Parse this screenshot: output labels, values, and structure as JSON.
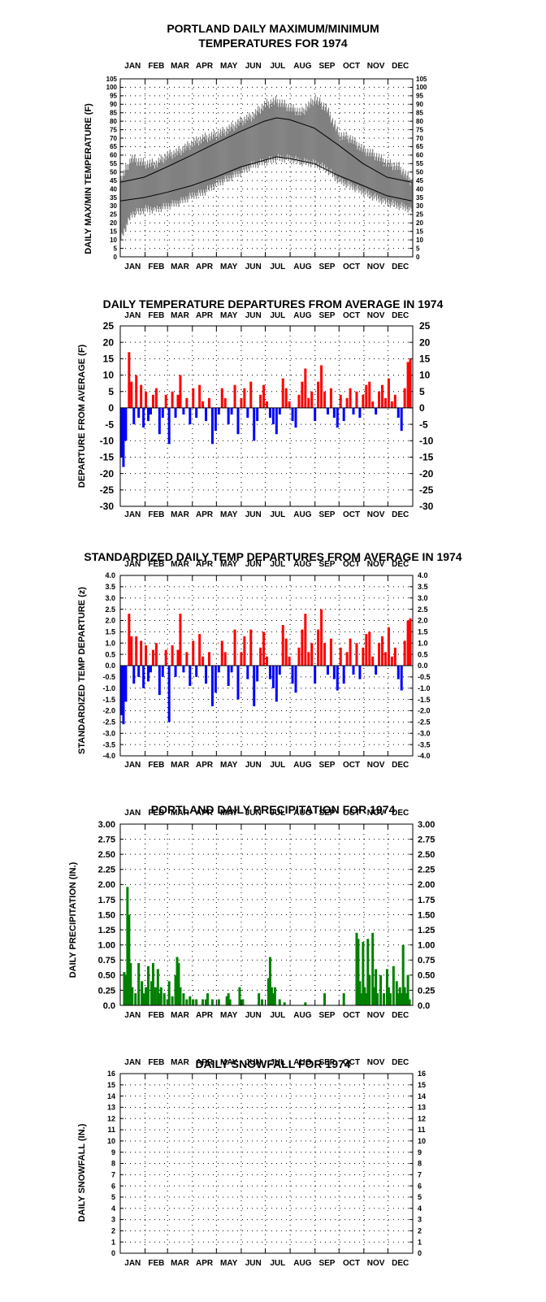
{
  "chart_data": [
    {
      "type": "line",
      "title": "PORTLAND DAILY MAXIMUM/MINIMUM TEMPERATURES FOR 1974",
      "title_lines": [
        "PORTLAND DAILY MAXIMUM/MINIMUM",
        "TEMPERATURES FOR 1974"
      ],
      "ylabel": "DAILY MAX/MIN TEMPERATURE (F)",
      "months": [
        "JAN",
        "FEB",
        "MAR",
        "APR",
        "MAY",
        "JUN",
        "JUL",
        "AUG",
        "SEP",
        "OCT",
        "NOV",
        "DEC"
      ],
      "ylim": [
        0,
        105
      ],
      "yticks": [
        "0",
        "5",
        "10",
        "15",
        "20",
        "25",
        "30",
        "35",
        "40",
        "45",
        "50",
        "55",
        "60",
        "65",
        "70",
        "75",
        "80",
        "85",
        "90",
        "95",
        "100",
        "105"
      ],
      "grid": true,
      "series": [
        {
          "role": "daily-range-band",
          "color": "#808080",
          "x": [
            1,
            15,
            32,
            46,
            60,
            74,
            91,
            105,
            121,
            135,
            152,
            166,
            182,
            196,
            213,
            227,
            244,
            258,
            274,
            288,
            305,
            319,
            335,
            349,
            365
          ],
          "high": [
            45,
            58,
            55,
            55,
            60,
            62,
            67,
            70,
            72,
            75,
            80,
            83,
            90,
            92,
            88,
            85,
            93,
            88,
            72,
            70,
            63,
            60,
            55,
            53,
            44
          ],
          "low": [
            10,
            25,
            28,
            28,
            30,
            32,
            36,
            38,
            43,
            46,
            50,
            54,
            56,
            58,
            58,
            56,
            55,
            52,
            45,
            42,
            38,
            35,
            32,
            30,
            28
          ]
        },
        {
          "role": "normal-high",
          "color": "#000000",
          "x": [
            1,
            31,
            59,
            90,
            120,
            151,
            181,
            196,
            212,
            243,
            273,
            304,
            334,
            365
          ],
          "values": [
            44,
            47,
            53,
            60,
            67,
            74,
            80,
            82,
            81,
            76,
            66,
            55,
            47,
            44
          ]
        },
        {
          "role": "normal-low",
          "color": "#000000",
          "x": [
            1,
            31,
            59,
            90,
            120,
            151,
            181,
            196,
            212,
            243,
            273,
            304,
            334,
            365
          ],
          "values": [
            33,
            35,
            38,
            42,
            47,
            53,
            57,
            59,
            58,
            55,
            48,
            42,
            36,
            33
          ]
        }
      ]
    },
    {
      "type": "bar",
      "title": "DAILY TEMPERATURE DEPARTURES FROM AVERAGE IN 1974",
      "ylabel": "DEPARTURE FROM AVERAGE (F)",
      "months": [
        "JAN",
        "FEB",
        "MAR",
        "APR",
        "MAY",
        "JUN",
        "JUL",
        "AUG",
        "SEP",
        "OCT",
        "NOV",
        "DEC"
      ],
      "ylim": [
        -30,
        25
      ],
      "yticks": [
        "-30",
        "-25",
        "-20",
        "-15",
        "-10",
        "-5",
        "0",
        "5",
        "10",
        "15",
        "20",
        "25"
      ],
      "grid": true,
      "colors": {
        "positive": "#ff0000",
        "negative": "#0000ff"
      },
      "x": [
        2,
        5,
        8,
        12,
        15,
        18,
        21,
        24,
        27,
        30,
        33,
        36,
        39,
        42,
        46,
        50,
        54,
        58,
        62,
        66,
        70,
        73,
        76,
        80,
        84,
        88,
        92,
        96,
        100,
        104,
        108,
        112,
        116,
        120,
        124,
        128,
        132,
        136,
        140,
        144,
        148,
        152,
        156,
        160,
        164,
        168,
        172,
        176,
        180,
        184,
        188,
        192,
        196,
        200,
        204,
        208,
        212,
        216,
        220,
        224,
        228,
        232,
        236,
        240,
        244,
        248,
        252,
        256,
        260,
        264,
        268,
        272,
        276,
        280,
        284,
        288,
        292,
        296,
        300,
        304,
        308,
        312,
        316,
        320,
        324,
        328,
        332,
        336,
        340,
        344,
        348,
        352,
        356,
        360,
        363
      ],
      "values": [
        -15,
        -18,
        -10,
        17,
        8,
        -5,
        10,
        -3,
        7,
        -6,
        5,
        -4,
        -2,
        4,
        6,
        -8,
        -3,
        4,
        -11,
        5,
        -3,
        4,
        10,
        -2,
        3,
        -5,
        6,
        -3,
        7,
        2,
        -4,
        3,
        -11,
        -7,
        -2,
        6,
        3,
        -5,
        -2,
        7,
        -8,
        3,
        6,
        -3,
        8,
        -10,
        -4,
        4,
        7,
        2,
        -3,
        -5,
        -8,
        -2,
        9,
        6,
        2,
        -4,
        -6,
        4,
        8,
        12,
        3,
        5,
        -4,
        8,
        13,
        5,
        -2,
        6,
        -3,
        -6,
        4,
        -4,
        3,
        6,
        -2,
        5,
        -3,
        4,
        7,
        8,
        2,
        -2,
        5,
        7,
        3,
        9,
        2,
        4,
        -3,
        -7,
        6,
        14,
        15
      ]
    },
    {
      "type": "bar",
      "title": "STANDARDIZED DAILY TEMP DEPARTURES FROM AVERAGE IN 1974",
      "ylabel": "STANDARDIZED TEMP DEPARTURE (z)",
      "months": [
        "JAN",
        "FEB",
        "MAR",
        "APR",
        "MAY",
        "JUN",
        "JUL",
        "AUG",
        "SEP",
        "OCT",
        "NOV",
        "DEC"
      ],
      "ylim": [
        -4,
        4
      ],
      "yticks": [
        "-4.0",
        "-3.5",
        "-3.0",
        "-2.5",
        "-2.0",
        "-1.5",
        "-1.0",
        "-0.5",
        "0.0",
        "0.5",
        "1.0",
        "1.5",
        "2.0",
        "2.5",
        "3.0",
        "3.5",
        "4.0"
      ],
      "grid": true,
      "colors": {
        "positive": "#ff0000",
        "negative": "#0000ff"
      },
      "x": [
        2,
        5,
        8,
        12,
        15,
        18,
        21,
        24,
        27,
        30,
        33,
        36,
        39,
        42,
        46,
        50,
        54,
        58,
        62,
        66,
        70,
        73,
        76,
        80,
        84,
        88,
        92,
        96,
        100,
        104,
        108,
        112,
        116,
        120,
        124,
        128,
        132,
        136,
        140,
        144,
        148,
        152,
        156,
        160,
        164,
        168,
        172,
        176,
        180,
        184,
        188,
        192,
        196,
        200,
        204,
        208,
        212,
        216,
        220,
        224,
        228,
        232,
        236,
        240,
        244,
        248,
        252,
        256,
        260,
        264,
        268,
        272,
        276,
        280,
        284,
        288,
        292,
        296,
        300,
        304,
        308,
        312,
        316,
        320,
        324,
        328,
        332,
        336,
        340,
        344,
        348,
        352,
        356,
        360,
        363
      ],
      "values": [
        -2.2,
        -2.6,
        -1.6,
        2.3,
        1.3,
        -0.8,
        1.3,
        -0.5,
        1.1,
        -1.0,
        0.9,
        -0.7,
        -0.3,
        0.7,
        1.0,
        -1.3,
        -0.5,
        0.7,
        -2.5,
        0.9,
        -0.5,
        0.7,
        2.3,
        -0.3,
        0.6,
        -0.9,
        1.1,
        -0.5,
        1.4,
        0.4,
        -0.8,
        0.6,
        -1.8,
        -1.2,
        -0.3,
        1.1,
        0.6,
        -0.9,
        -0.3,
        1.6,
        -1.5,
        0.6,
        1.3,
        -0.6,
        1.6,
        -1.8,
        -0.7,
        0.8,
        1.5,
        0.4,
        -0.6,
        -1.0,
        -1.6,
        -0.4,
        1.8,
        1.2,
        0.4,
        -0.8,
        -1.2,
        0.8,
        1.6,
        2.3,
        0.6,
        1.0,
        -0.8,
        1.6,
        2.5,
        1.0,
        -0.4,
        1.2,
        -0.6,
        -1.1,
        0.8,
        -0.8,
        0.6,
        1.2,
        -0.4,
        1.0,
        -0.6,
        0.8,
        1.4,
        1.5,
        0.4,
        -0.4,
        1.0,
        1.3,
        0.6,
        1.7,
        0.4,
        0.8,
        -0.6,
        -1.1,
        1.1,
        2.0,
        2.1
      ]
    },
    {
      "type": "bar",
      "title": "PORTLAND DAILY PRECIPITATION FOR 1974",
      "ylabel": "DAILY PRECIPITATION (IN.)",
      "months": [
        "JAN",
        "FEB",
        "MAR",
        "APR",
        "MAY",
        "JUN",
        "JUL",
        "AUG",
        "SEP",
        "OCT",
        "NOV",
        "DEC"
      ],
      "ylim": [
        0,
        3
      ],
      "yticks": [
        "0.0",
        "0.25",
        "0.50",
        "0.75",
        "1.00",
        "1.25",
        "1.50",
        "1.75",
        "2.00",
        "2.25",
        "2.50",
        "2.75",
        "3.00"
      ],
      "grid": true,
      "colors": {
        "bar": "#008000"
      },
      "x": [
        6,
        8,
        10,
        12,
        14,
        16,
        20,
        24,
        28,
        30,
        33,
        36,
        40,
        42,
        45,
        48,
        50,
        52,
        56,
        60,
        62,
        66,
        70,
        72,
        74,
        76,
        80,
        84,
        88,
        92,
        96,
        104,
        108,
        110,
        116,
        124,
        134,
        136,
        138,
        150,
        154,
        174,
        178,
        186,
        188,
        190,
        192,
        194,
        200,
        206,
        232,
        256,
        280,
        296,
        298,
        300,
        302,
        304,
        306,
        308,
        310,
        312,
        316,
        318,
        320,
        322,
        326,
        330,
        334,
        336,
        338,
        342,
        346,
        348,
        350,
        352,
        354,
        356,
        358,
        360,
        362
      ],
      "values": [
        0.55,
        0.5,
        1.96,
        1.5,
        0.7,
        0.3,
        0.2,
        0.7,
        0.4,
        0.2,
        0.3,
        0.65,
        0.4,
        0.7,
        0.3,
        0.6,
        0.2,
        0.3,
        0.2,
        0.1,
        0.4,
        0.15,
        0.5,
        0.8,
        0.7,
        0.3,
        0.2,
        0.1,
        0.15,
        0.1,
        0.1,
        0.1,
        0.1,
        0.2,
        0.1,
        0.1,
        0.15,
        0.2,
        0.1,
        0.3,
        0.1,
        0.2,
        0.1,
        0.45,
        0.8,
        0.3,
        0.2,
        0.3,
        0.1,
        0.05,
        0.05,
        0.2,
        0.2,
        1.2,
        1.1,
        0.4,
        0.2,
        1.05,
        0.3,
        0.2,
        1.1,
        0.5,
        1.2,
        0.3,
        0.6,
        0.2,
        0.5,
        0.2,
        0.6,
        0.3,
        0.2,
        0.65,
        0.4,
        0.2,
        0.3,
        0.2,
        1.0,
        0.3,
        0.2,
        0.5,
        0.1
      ]
    },
    {
      "type": "bar",
      "title": "DAILY SNOWFALL FOR 1974",
      "ylabel": "DAILY SNOWFALL (IN.)",
      "months": [
        "JAN",
        "FEB",
        "MAR",
        "APR",
        "MAY",
        "JUN",
        "JUL",
        "AUG",
        "SEP",
        "OCT",
        "NOV",
        "DEC"
      ],
      "ylim": [
        0,
        16
      ],
      "yticks": [
        "0",
        "1",
        "2",
        "3",
        "4",
        "5",
        "6",
        "7",
        "8",
        "9",
        "10",
        "11",
        "12",
        "13",
        "14",
        "15",
        "16"
      ],
      "grid": true,
      "colors": {
        "bar": "#000000"
      },
      "x": [],
      "values": []
    }
  ]
}
